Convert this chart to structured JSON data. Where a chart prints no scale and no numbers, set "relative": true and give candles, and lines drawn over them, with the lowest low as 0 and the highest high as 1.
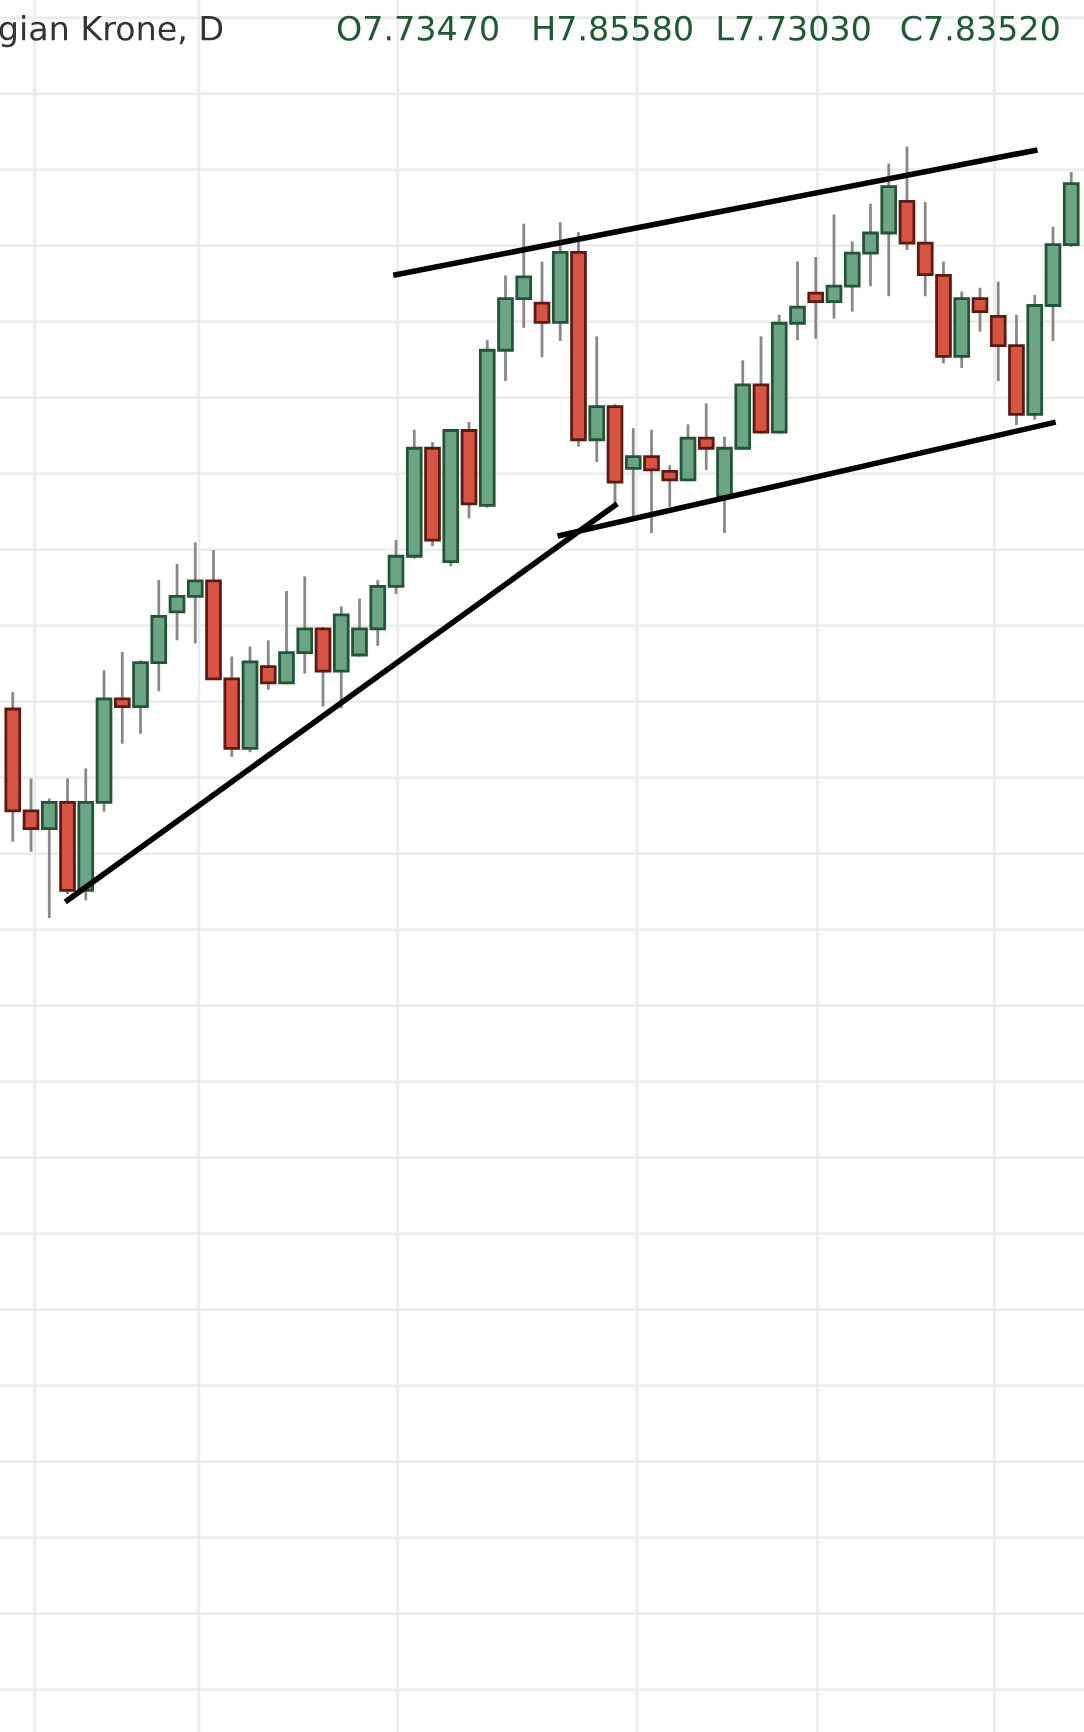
{
  "chart_data": {
    "type": "candlestick",
    "title": "gian Krone, D",
    "annotations": [
      "O7.73470",
      "H7.85580",
      "L7.73030",
      "C7.83520"
    ],
    "relative": true,
    "grid": true,
    "categories": [
      null,
      null,
      null,
      null,
      null,
      null,
      null,
      null,
      null,
      null,
      null,
      null,
      null,
      null,
      null,
      null,
      null,
      null,
      null,
      null,
      null,
      null,
      null,
      null,
      null,
      null,
      null,
      null,
      null,
      null,
      null,
      null,
      null,
      null,
      null,
      null,
      null,
      null,
      null,
      null,
      null,
      null,
      null,
      null,
      null,
      null,
      null,
      null,
      null,
      null,
      null,
      null,
      null,
      null,
      null,
      null,
      null,
      null,
      null
    ],
    "ohlc": [
      [
        0.271,
        0.293,
        0.099,
        0.139
      ],
      [
        0.139,
        0.181,
        0.086,
        0.116
      ],
      [
        0.116,
        0.155,
        0.0,
        0.15
      ],
      [
        0.15,
        0.181,
        0.031,
        0.036
      ],
      [
        0.036,
        0.194,
        0.023,
        0.15
      ],
      [
        0.15,
        0.321,
        0.138,
        0.284
      ],
      [
        0.284,
        0.345,
        0.226,
        0.274
      ],
      [
        0.274,
        0.334,
        0.239,
        0.331
      ],
      [
        0.331,
        0.438,
        0.294,
        0.391
      ],
      [
        0.397,
        0.459,
        0.36,
        0.417
      ],
      [
        0.417,
        0.487,
        0.356,
        0.437
      ],
      [
        0.437,
        0.477,
        0.31,
        0.31
      ],
      [
        0.31,
        0.339,
        0.209,
        0.22
      ],
      [
        0.22,
        0.352,
        0.215,
        0.332
      ],
      [
        0.326,
        0.36,
        0.296,
        0.305
      ],
      [
        0.305,
        0.424,
        0.303,
        0.344
      ],
      [
        0.344,
        0.443,
        0.317,
        0.375
      ],
      [
        0.375,
        0.377,
        0.274,
        0.32
      ],
      [
        0.32,
        0.404,
        0.272,
        0.393
      ],
      [
        0.341,
        0.414,
        0.339,
        0.375
      ],
      [
        0.375,
        0.438,
        0.353,
        0.43
      ],
      [
        0.43,
        0.49,
        0.42,
        0.469
      ],
      [
        0.469,
        0.633,
        0.466,
        0.609
      ],
      [
        0.609,
        0.617,
        0.482,
        0.49
      ],
      [
        0.462,
        0.634,
        0.456,
        0.632
      ],
      [
        0.632,
        0.643,
        0.518,
        0.537
      ],
      [
        0.535,
        0.749,
        0.532,
        0.736
      ],
      [
        0.736,
        0.833,
        0.696,
        0.803
      ],
      [
        0.803,
        0.9,
        0.765,
        0.831
      ],
      [
        0.797,
        0.851,
        0.727,
        0.772
      ],
      [
        0.772,
        0.902,
        0.748,
        0.863
      ],
      [
        0.863,
        0.889,
        0.611,
        0.62
      ],
      [
        0.62,
        0.754,
        0.591,
        0.663
      ],
      [
        0.663,
        0.666,
        0.535,
        0.565
      ],
      [
        0.583,
        0.635,
        0.518,
        0.598
      ],
      [
        0.598,
        0.633,
        0.499,
        0.581
      ],
      [
        0.579,
        0.587,
        0.533,
        0.568
      ],
      [
        0.568,
        0.64,
        0.566,
        0.622
      ],
      [
        0.622,
        0.667,
        0.581,
        0.609
      ],
      [
        0.546,
        0.624,
        0.499,
        0.609
      ],
      [
        0.609,
        0.723,
        0.607,
        0.691
      ],
      [
        0.691,
        0.754,
        0.628,
        0.63
      ],
      [
        0.63,
        0.782,
        0.628,
        0.771
      ],
      [
        0.771,
        0.851,
        0.749,
        0.792
      ],
      [
        0.81,
        0.857,
        0.751,
        0.799
      ],
      [
        0.799,
        0.912,
        0.777,
        0.819
      ],
      [
        0.819,
        0.877,
        0.786,
        0.862
      ],
      [
        0.862,
        0.926,
        0.819,
        0.888
      ],
      [
        0.888,
        0.978,
        0.806,
        0.948
      ],
      [
        0.929,
        1.0,
        0.866,
        0.875
      ],
      [
        0.875,
        0.928,
        0.806,
        0.834
      ],
      [
        0.833,
        0.851,
        0.719,
        0.728
      ],
      [
        0.728,
        0.812,
        0.713,
        0.803
      ],
      [
        0.803,
        0.817,
        0.76,
        0.786
      ],
      [
        0.78,
        0.825,
        0.696,
        0.742
      ],
      [
        0.742,
        0.782,
        0.639,
        0.653
      ],
      [
        0.653,
        0.808,
        0.646,
        0.794
      ],
      [
        0.794,
        0.896,
        0.748,
        0.873
      ],
      [
        0.873,
        0.967,
        0.87,
        0.952
      ]
    ],
    "colors": [
      "#d75442",
      "#d75442",
      "#6ba583",
      "#d75442",
      "#6ba583",
      "#6ba583",
      "#d75442",
      "#6ba583",
      "#6ba583",
      "#6ba583",
      "#6ba583",
      "#d75442",
      "#d75442",
      "#6ba583",
      "#d75442",
      "#6ba583",
      "#6ba583",
      "#d75442",
      "#6ba583",
      "#6ba583",
      "#6ba583",
      "#6ba583",
      "#6ba583",
      "#d75442",
      "#6ba583",
      "#d75442",
      "#6ba583",
      "#6ba583",
      "#6ba583",
      "#d75442",
      "#6ba583",
      "#d75442",
      "#6ba583",
      "#d75442",
      "#6ba583",
      "#d75442",
      "#d75442",
      "#6ba583",
      "#d75442",
      "#6ba583",
      "#6ba583",
      "#d75442",
      "#6ba583",
      "#6ba583",
      "#d75442",
      "#6ba583",
      "#6ba583",
      "#6ba583",
      "#6ba583",
      "#d75442",
      "#d75442",
      "#d75442",
      "#6ba583",
      "#d75442",
      "#d75442",
      "#d75442",
      "#6ba583",
      "#6ba583",
      "#6ba583"
    ],
    "series": [
      {
        "type": "line",
        "color": "#000000",
        "values": [
          null,
          null,
          null,
          0.023,
          null,
          null,
          null,
          null,
          null,
          null,
          null,
          null,
          null,
          null,
          null,
          null,
          null,
          null,
          null,
          null,
          null,
          null,
          null,
          null,
          null,
          null,
          null,
          null,
          null,
          null,
          null,
          null,
          null,
          0.535,
          null,
          null,
          null,
          null,
          null,
          null,
          null,
          null,
          null,
          null,
          null,
          null,
          null,
          null,
          null,
          null,
          null,
          null,
          null,
          null,
          null,
          null,
          null,
          null,
          null
        ]
      },
      {
        "type": "line",
        "color": "#000000",
        "values": [
          null,
          null,
          null,
          null,
          null,
          null,
          null,
          null,
          null,
          null,
          null,
          null,
          null,
          null,
          null,
          null,
          null,
          null,
          null,
          null,
          null,
          null,
          null,
          null,
          null,
          null,
          null,
          null,
          null,
          null,
          0.496,
          null,
          null,
          null,
          null,
          null,
          null,
          null,
          null,
          null,
          null,
          null,
          null,
          null,
          null,
          null,
          null,
          null,
          null,
          null,
          null,
          null,
          null,
          null,
          null,
          null,
          null,
          0.642,
          null
        ]
      },
      {
        "type": "line",
        "color": "#000000",
        "values": [
          null,
          null,
          null,
          null,
          null,
          null,
          null,
          null,
          null,
          null,
          null,
          null,
          null,
          null,
          null,
          null,
          null,
          null,
          null,
          null,
          null,
          0.834,
          null,
          null,
          null,
          null,
          null,
          null,
          null,
          null,
          null,
          null,
          null,
          null,
          null,
          null,
          null,
          null,
          null,
          null,
          null,
          null,
          null,
          null,
          null,
          null,
          null,
          null,
          null,
          null,
          null,
          null,
          null,
          null,
          null,
          null,
          0.995,
          null,
          null
        ]
      }
    ]
  }
}
